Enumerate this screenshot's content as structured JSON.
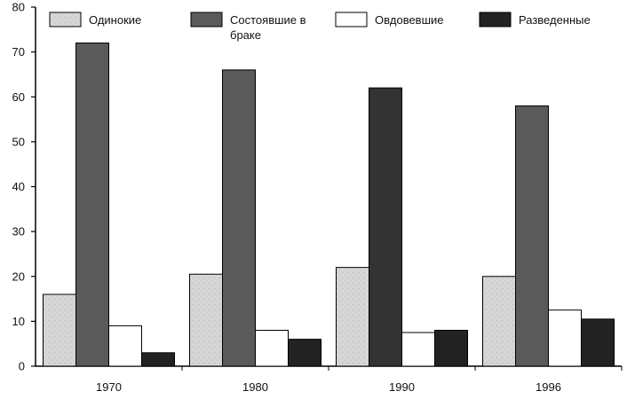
{
  "chart_data": {
    "type": "bar",
    "categories": [
      "1970",
      "1980",
      "1990",
      "1996"
    ],
    "series": [
      {
        "name": "Одинокие",
        "values": [
          16,
          20.5,
          22,
          20
        ],
        "color": "#d9d9d9"
      },
      {
        "name": "Состоявшие в браке",
        "values": [
          72,
          66,
          62,
          58
        ],
        "color": "#5a5a5a"
      },
      {
        "name": "Овдовевшие",
        "values": [
          9,
          8,
          7.5,
          12.5
        ],
        "color": "#ffffff"
      },
      {
        "name": "Разведенные",
        "values": [
          3,
          6,
          8,
          10.5
        ],
        "color": "#222222"
      }
    ],
    "yticks": [
      0,
      10,
      20,
      30,
      40,
      50,
      60,
      70,
      80
    ],
    "ylim": [
      0,
      80
    ],
    "grid": false,
    "legend_position": "top"
  }
}
